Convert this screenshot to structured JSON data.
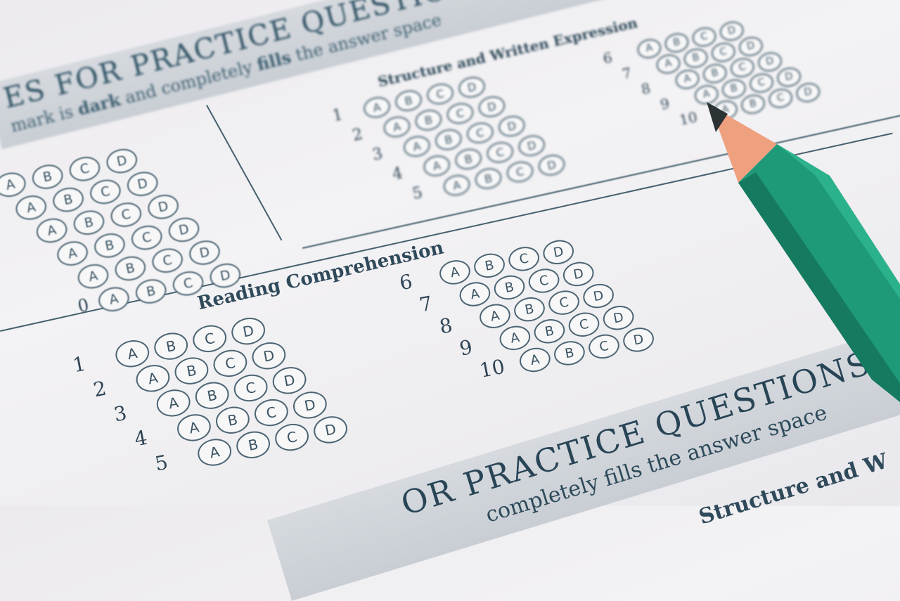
{
  "sheet": {
    "top_banner": {
      "title": "ES FOR PRACTICE QUESTIONS—LE",
      "instruction_parts": [
        "mark is ",
        "dark",
        " and completely ",
        "fills",
        " the answer space"
      ]
    },
    "structure_section": {
      "heading": "Structure and Written Expression",
      "grid_a": {
        "numbers": [
          "1",
          "2",
          "3",
          "4",
          "5"
        ]
      },
      "grid_b": {
        "numbers": [
          "6",
          "7",
          "8",
          "9",
          "10"
        ]
      }
    },
    "left_section": {
      "numbers": [
        "",
        "",
        "",
        "",
        "",
        "0"
      ]
    },
    "reading_section": {
      "heading": "Reading Comprehension",
      "grid_a": {
        "numbers": [
          "1",
          "2",
          "3",
          "4",
          "5"
        ]
      },
      "grid_b": {
        "numbers": [
          "6",
          "7",
          "8",
          "9",
          "10"
        ]
      }
    },
    "options": [
      "A",
      "B",
      "C",
      "D"
    ],
    "bottom_banner": {
      "title": "OR PRACTICE QUESTIONS—LEV",
      "instruction": "completely fills the answer space",
      "subheading": "Structure and W"
    }
  },
  "colors": {
    "ink": "#2f4a5a",
    "band": "#cdd2d8",
    "pencil_green": "#1f9a78",
    "pencil_wood": "#f0a27e"
  }
}
